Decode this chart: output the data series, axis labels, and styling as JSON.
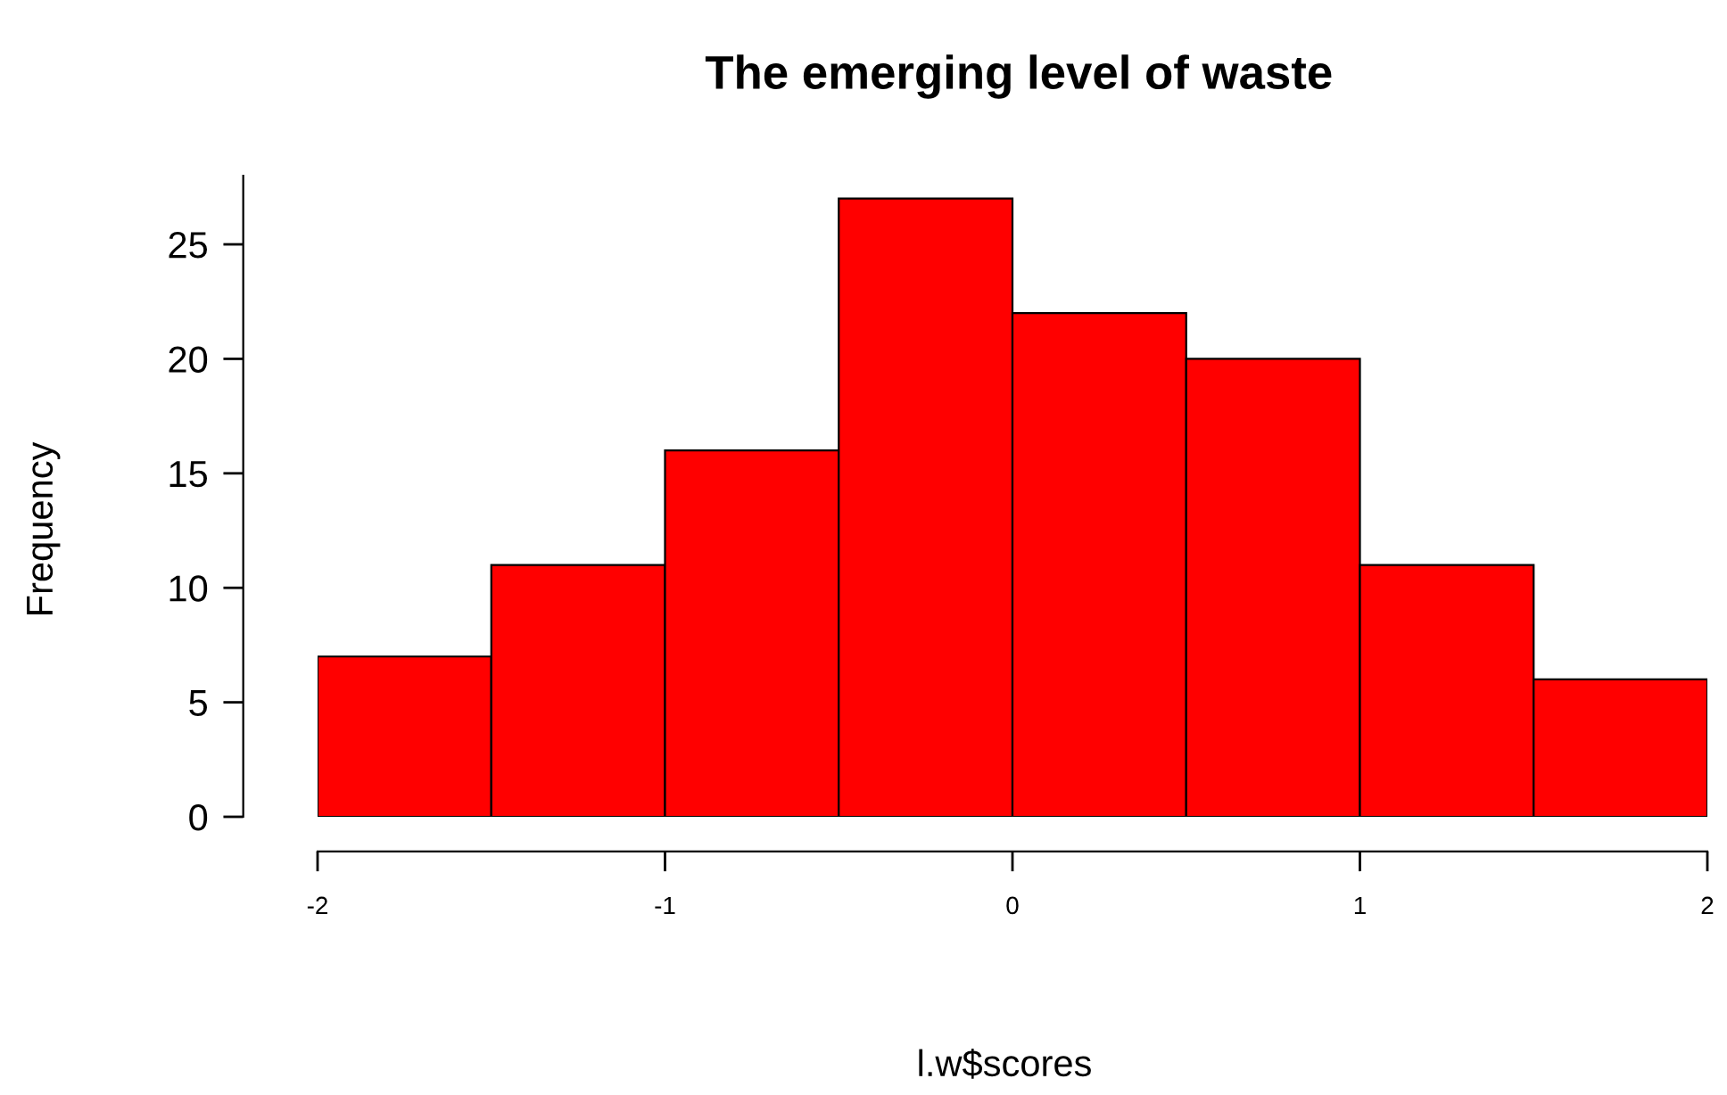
{
  "chart_data": {
    "type": "histogram",
    "title": "The emerging level of waste",
    "xlabel": "l.w$scores",
    "ylabel": "Frequency",
    "bins": [
      -2,
      -1.5,
      -1,
      -0.5,
      0,
      0.5,
      1,
      1.5,
      2
    ],
    "values": [
      7,
      11,
      16,
      27,
      22,
      20,
      11,
      6
    ],
    "color": "#ff0000",
    "xlim": [
      -2,
      2
    ],
    "ylim": [
      0,
      28
    ],
    "xticks": [
      -2,
      -1,
      0,
      1,
      2
    ],
    "yticks": [
      0,
      5,
      10,
      15,
      20,
      25
    ],
    "grid": false,
    "legend": false
  }
}
